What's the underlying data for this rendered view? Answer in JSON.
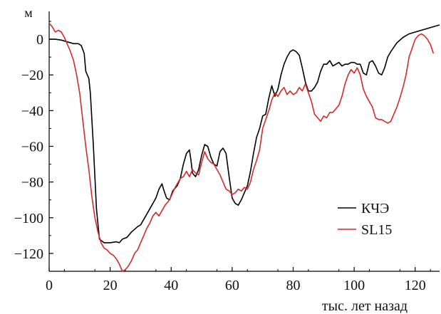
{
  "chart_data": {
    "type": "line",
    "ylabel": "м",
    "xlabel": "тыс. лет назад",
    "xlim": [
      0,
      128
    ],
    "ylim": [
      -130,
      10
    ],
    "xticks": [
      0,
      20,
      40,
      60,
      80,
      100,
      120
    ],
    "yticks": [
      0,
      -20,
      -40,
      -60,
      -80,
      -100,
      -120
    ],
    "xtick_labels": [
      "0",
      "20",
      "40",
      "60",
      "80",
      "100",
      "120"
    ],
    "ytick_labels": [
      "0",
      "−20",
      "−40",
      "−60",
      "−80",
      "−100",
      "−120"
    ],
    "grid": false,
    "legend": "bottom-right",
    "series": [
      {
        "name": "КЧЭ",
        "color": "#000000",
        "points": [
          [
            0,
            0
          ],
          [
            2,
            0
          ],
          [
            4,
            -0.5
          ],
          [
            6,
            -1.5
          ],
          [
            8,
            -2.5
          ],
          [
            9.5,
            -2.5
          ],
          [
            10.5,
            -3.5
          ],
          [
            11.5,
            -8
          ],
          [
            12,
            -18
          ],
          [
            13,
            -22
          ],
          [
            13.5,
            -30
          ],
          [
            14.5,
            -60
          ],
          [
            15.5,
            -95
          ],
          [
            16.5,
            -112
          ],
          [
            18,
            -114
          ],
          [
            20,
            -114
          ],
          [
            22,
            -113.5
          ],
          [
            23,
            -114
          ],
          [
            24,
            -112
          ],
          [
            25.5,
            -111
          ],
          [
            27,
            -108
          ],
          [
            29,
            -105
          ],
          [
            30,
            -104
          ],
          [
            32,
            -98
          ],
          [
            34,
            -92
          ],
          [
            35,
            -89
          ],
          [
            36,
            -84
          ],
          [
            37,
            -81
          ],
          [
            37.5,
            -84
          ],
          [
            38.5,
            -89
          ],
          [
            39.5,
            -90
          ],
          [
            40.5,
            -85
          ],
          [
            42,
            -82
          ],
          [
            43,
            -78
          ],
          [
            44,
            -70
          ],
          [
            45,
            -64
          ],
          [
            46,
            -62
          ],
          [
            46.5,
            -68
          ],
          [
            47,
            -75
          ],
          [
            48,
            -77
          ],
          [
            49,
            -73
          ],
          [
            50,
            -65
          ],
          [
            51,
            -59
          ],
          [
            52,
            -60
          ],
          [
            53,
            -66
          ],
          [
            54,
            -70
          ],
          [
            55,
            -71
          ],
          [
            56,
            -63
          ],
          [
            57,
            -61
          ],
          [
            58,
            -64
          ],
          [
            59,
            -77
          ],
          [
            60,
            -89
          ],
          [
            61,
            -92
          ],
          [
            62,
            -93
          ],
          [
            63,
            -90
          ],
          [
            65,
            -82
          ],
          [
            66,
            -74
          ],
          [
            67,
            -64
          ],
          [
            68,
            -55
          ],
          [
            69,
            -50
          ],
          [
            70,
            -43
          ],
          [
            71,
            -42
          ],
          [
            72,
            -33
          ],
          [
            73,
            -26
          ],
          [
            74,
            -32
          ],
          [
            75,
            -28
          ],
          [
            76,
            -20
          ],
          [
            77,
            -14
          ],
          [
            78,
            -10
          ],
          [
            79,
            -7
          ],
          [
            80,
            -6
          ],
          [
            81,
            -7
          ],
          [
            82,
            -9
          ],
          [
            83,
            -16
          ],
          [
            84,
            -24
          ],
          [
            85,
            -29
          ],
          [
            86,
            -29
          ],
          [
            87,
            -27
          ],
          [
            88,
            -24
          ],
          [
            89,
            -18
          ],
          [
            90,
            -14
          ],
          [
            91,
            -14
          ],
          [
            92,
            -12
          ],
          [
            93,
            -15
          ],
          [
            94,
            -14
          ],
          [
            95,
            -13
          ],
          [
            96,
            -15
          ],
          [
            97,
            -14
          ],
          [
            98,
            -14
          ],
          [
            99,
            -13
          ],
          [
            100,
            -13
          ],
          [
            101,
            -14
          ],
          [
            102,
            -14
          ],
          [
            103,
            -19
          ],
          [
            104,
            -20
          ],
          [
            105,
            -13
          ],
          [
            106,
            -12
          ],
          [
            107,
            -15
          ],
          [
            108,
            -19
          ],
          [
            109,
            -20
          ],
          [
            110,
            -16
          ],
          [
            111,
            -10
          ],
          [
            112,
            -7
          ],
          [
            114,
            -2
          ],
          [
            116,
            1
          ],
          [
            118,
            3
          ],
          [
            120,
            4
          ],
          [
            122,
            5
          ],
          [
            124,
            6
          ],
          [
            126,
            7
          ],
          [
            128,
            8
          ]
        ]
      },
      {
        "name": "SL15",
        "color": "#d42a2a",
        "points": [
          [
            0,
            9
          ],
          [
            1,
            7
          ],
          [
            2,
            4
          ],
          [
            3,
            5
          ],
          [
            4,
            4
          ],
          [
            5,
            1
          ],
          [
            6,
            -3
          ],
          [
            7,
            -7
          ],
          [
            8,
            -12
          ],
          [
            9,
            -20
          ],
          [
            10,
            -30
          ],
          [
            11,
            -45
          ],
          [
            12,
            -60
          ],
          [
            13,
            -73
          ],
          [
            14,
            -88
          ],
          [
            15,
            -100
          ],
          [
            16,
            -108
          ],
          [
            17,
            -114
          ],
          [
            18,
            -117
          ],
          [
            19,
            -118
          ],
          [
            20,
            -120
          ],
          [
            21,
            -121
          ],
          [
            22,
            -123
          ],
          [
            23,
            -126
          ],
          [
            24,
            -130
          ],
          [
            25,
            -129
          ],
          [
            26,
            -127
          ],
          [
            27,
            -124
          ],
          [
            28,
            -120
          ],
          [
            29,
            -118
          ],
          [
            30,
            -114
          ],
          [
            31,
            -110
          ],
          [
            32,
            -106
          ],
          [
            33,
            -103
          ],
          [
            34,
            -99
          ],
          [
            35,
            -97
          ],
          [
            36,
            -99
          ],
          [
            37,
            -96
          ],
          [
            38,
            -93
          ],
          [
            39,
            -91
          ],
          [
            40,
            -88
          ],
          [
            41,
            -84
          ],
          [
            42,
            -81
          ],
          [
            43,
            -78
          ],
          [
            44,
            -77
          ],
          [
            45,
            -74
          ],
          [
            46,
            -77
          ],
          [
            47,
            -73
          ],
          [
            48,
            -75
          ],
          [
            49,
            -76
          ],
          [
            50,
            -69
          ],
          [
            51,
            -63
          ],
          [
            52,
            -67
          ],
          [
            53,
            -69
          ],
          [
            54,
            -70
          ],
          [
            55,
            -73
          ],
          [
            56,
            -76
          ],
          [
            57,
            -80
          ],
          [
            58,
            -84
          ],
          [
            59,
            -85
          ],
          [
            60,
            -87
          ],
          [
            61,
            -86
          ],
          [
            62,
            -84
          ],
          [
            63,
            -85
          ],
          [
            64,
            -83
          ],
          [
            65,
            -84
          ],
          [
            66,
            -80
          ],
          [
            67,
            -73
          ],
          [
            68,
            -68
          ],
          [
            69,
            -62
          ],
          [
            70,
            -50
          ],
          [
            71,
            -45
          ],
          [
            72,
            -40
          ],
          [
            73,
            -34
          ],
          [
            74,
            -30
          ],
          [
            75,
            -32
          ],
          [
            76,
            -29
          ],
          [
            77,
            -27
          ],
          [
            78,
            -31
          ],
          [
            79,
            -29
          ],
          [
            80,
            -31
          ],
          [
            81,
            -30
          ],
          [
            82,
            -27
          ],
          [
            83,
            -29
          ],
          [
            84,
            -25
          ],
          [
            85,
            -30
          ],
          [
            86,
            -35
          ],
          [
            87,
            -42
          ],
          [
            88,
            -44
          ],
          [
            89,
            -46
          ],
          [
            90,
            -43
          ],
          [
            91,
            -44
          ],
          [
            92,
            -41
          ],
          [
            93,
            -41
          ],
          [
            94,
            -39
          ],
          [
            95,
            -37
          ],
          [
            96,
            -32
          ],
          [
            97,
            -25
          ],
          [
            98,
            -20
          ],
          [
            99,
            -17
          ],
          [
            100,
            -19
          ],
          [
            101,
            -16
          ],
          [
            102,
            -20
          ],
          [
            103,
            -28
          ],
          [
            104,
            -32
          ],
          [
            105,
            -35
          ],
          [
            106,
            -38
          ],
          [
            107,
            -44
          ],
          [
            108,
            -45
          ],
          [
            109,
            -45
          ],
          [
            110,
            -46
          ],
          [
            111,
            -47
          ],
          [
            112,
            -46
          ],
          [
            113,
            -42
          ],
          [
            114,
            -38
          ],
          [
            115,
            -33
          ],
          [
            116,
            -27
          ],
          [
            117,
            -20
          ],
          [
            118,
            -10
          ],
          [
            119,
            -5
          ],
          [
            120,
            0
          ],
          [
            121,
            2
          ],
          [
            122,
            3
          ],
          [
            123,
            2
          ],
          [
            124,
            0
          ],
          [
            125,
            -3
          ],
          [
            126,
            -8
          ]
        ]
      }
    ]
  }
}
